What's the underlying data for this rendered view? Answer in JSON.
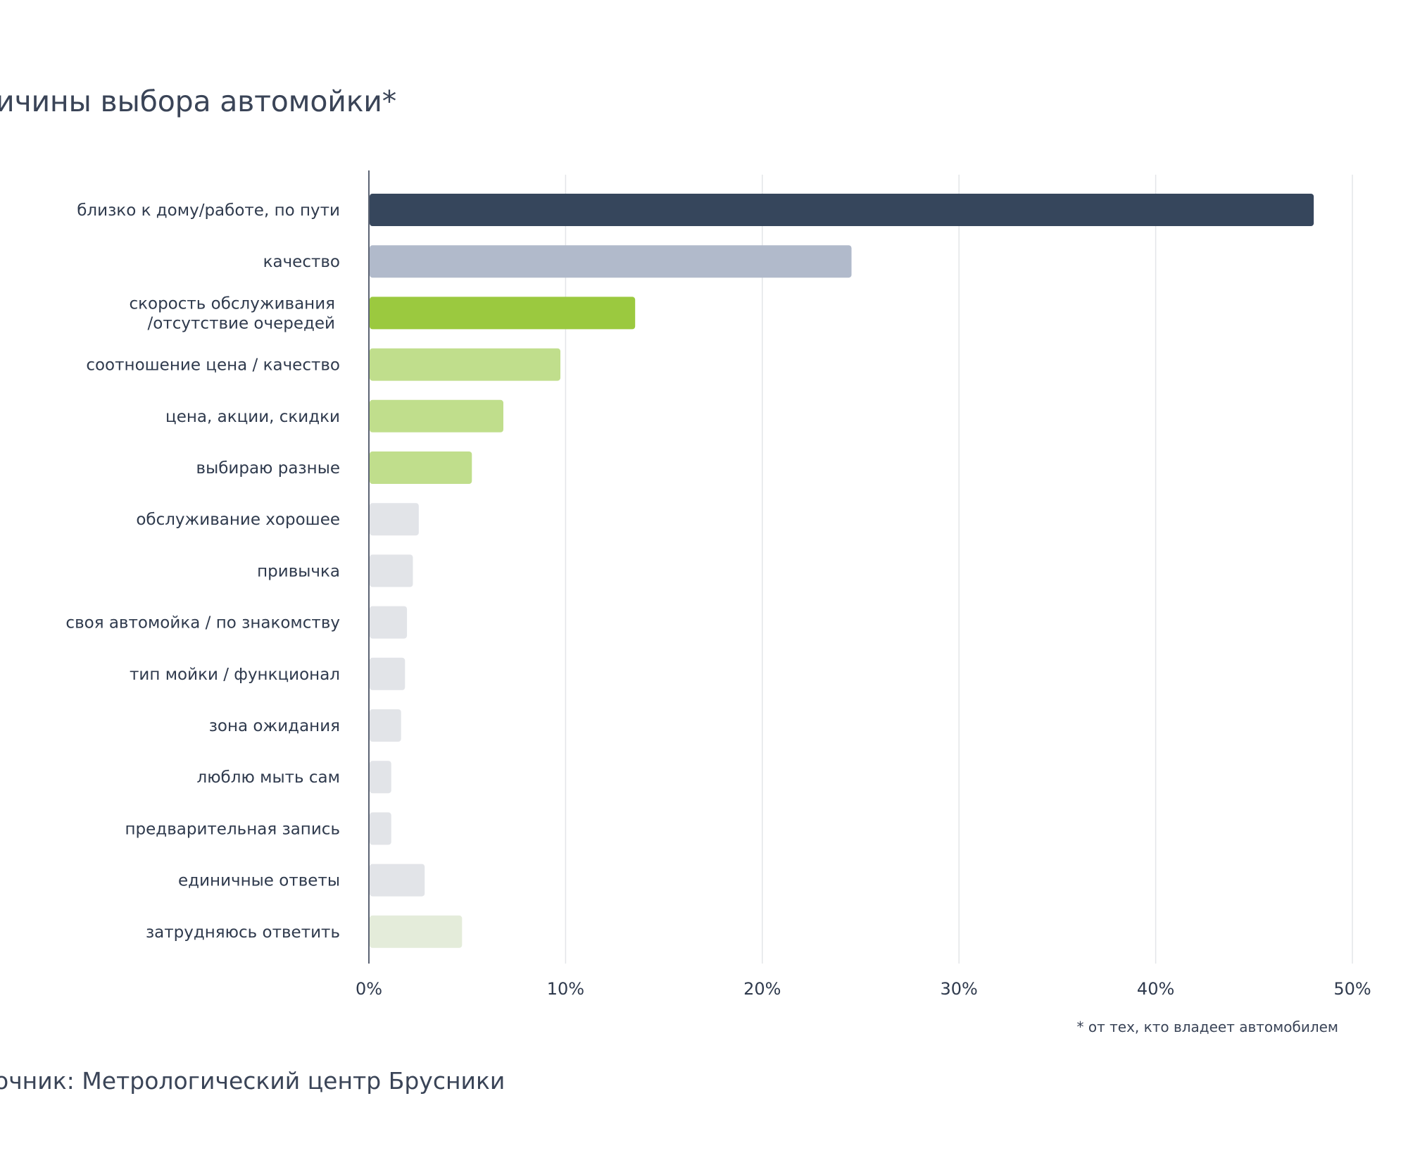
{
  "chart_data": {
    "type": "bar",
    "orientation": "horizontal",
    "title": "ичины выбора автомойки*",
    "categories": [
      "близко к дому/работе, по пути",
      "качество",
      "скорость обслуживания\n/отсутствие очередей",
      "соотношение цена / качество",
      "цена, акции, скидки",
      "выбираю разные",
      "обслуживание хорошее",
      "привычка",
      "своя автомойка / по знакомству",
      "тип мойки / функционал",
      "зона ожидания",
      "люблю мыть сам",
      "предварительная запись",
      "единичные ответы",
      "затрудняюсь ответить"
    ],
    "values": [
      48.0,
      24.5,
      13.5,
      9.7,
      6.8,
      5.2,
      2.5,
      2.2,
      1.9,
      1.8,
      1.6,
      1.1,
      1.1,
      2.8,
      4.7
    ],
    "colors": [
      "#36465c",
      "#b1bacb",
      "#9bc93f",
      "#c0de8c",
      "#c0de8c",
      "#c0de8c",
      "#e2e4e8",
      "#e2e4e8",
      "#e2e4e8",
      "#e2e4e8",
      "#e2e4e8",
      "#e2e4e8",
      "#e2e4e8",
      "#e2e4e8",
      "#e4ecda"
    ],
    "xlim": [
      0,
      50
    ],
    "xticks": [
      "0%",
      "10%",
      "20%",
      "30%",
      "40%",
      "50%"
    ],
    "grid": true,
    "footnote": "* от тех, кто владеет автомобилем",
    "source": "очник: Метрологический центр Брусники"
  }
}
